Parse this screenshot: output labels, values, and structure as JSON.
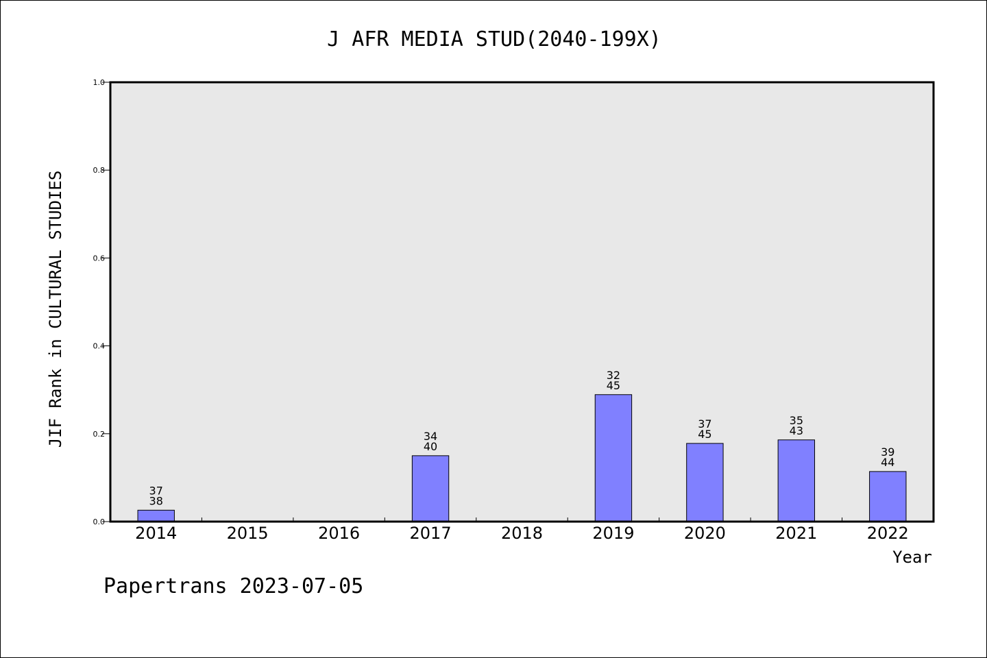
{
  "chart_data": {
    "type": "bar",
    "title": "J AFR MEDIA STUD(2040-199X)",
    "xlabel": "Year",
    "ylabel": "JIF Rank in CULTURAL STUDIES",
    "ylim": [
      0,
      1.0
    ],
    "yticks": [
      "0.0",
      "0.2",
      "0.4",
      "0.6",
      "0.8",
      "1.0"
    ],
    "categories": [
      "2014",
      "2015",
      "2016",
      "2017",
      "2018",
      "2019",
      "2020",
      "2021",
      "2022"
    ],
    "values": [
      0.026,
      null,
      null,
      0.15,
      null,
      0.289,
      0.178,
      0.186,
      0.114
    ],
    "bar_labels": [
      [
        "37",
        "38"
      ],
      null,
      null,
      [
        "34",
        "40"
      ],
      null,
      [
        "32",
        "45"
      ],
      [
        "37",
        "45"
      ],
      [
        "35",
        "43"
      ],
      [
        "39",
        "44"
      ]
    ],
    "bar_color": "#8080ff",
    "plot_background": "#e8e8e8",
    "grid": false
  },
  "footer": {
    "text": "Papertrans 2023-07-05"
  }
}
